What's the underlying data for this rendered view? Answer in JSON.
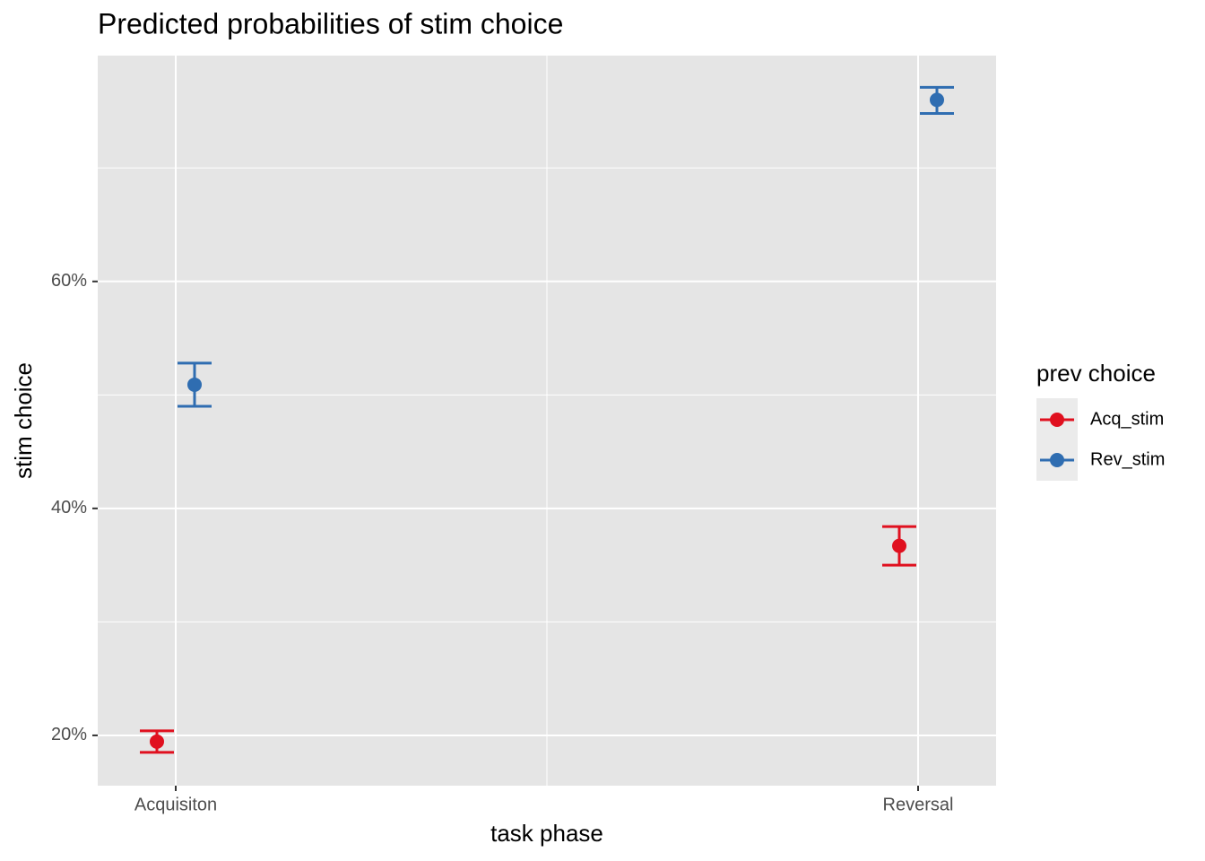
{
  "chart_data": {
    "type": "errorpoint",
    "title": "Predicted probabilities of stim choice",
    "x_label": "task phase",
    "y_label": "stim choice",
    "legend_title": "prev choice",
    "categories": [
      "Acquisiton",
      "Reversal"
    ],
    "series": [
      {
        "name": "Acq_stim",
        "color": "#e0101f",
        "values": [
          19.45,
          36.7
        ],
        "lower": [
          18.5,
          35.0
        ],
        "upper": [
          20.4,
          38.4
        ]
      },
      {
        "name": "Rev_stim",
        "color": "#2f6db1",
        "values": [
          50.9,
          76.0
        ],
        "lower": [
          49.0,
          74.8
        ],
        "upper": [
          52.8,
          77.1
        ]
      }
    ],
    "ylim": [
      15.57,
      79.9
    ],
    "yticks": [
      {
        "value": 20,
        "label": "20%"
      },
      {
        "value": 40,
        "label": "40%"
      },
      {
        "value": 60,
        "label": "60%"
      }
    ],
    "minor_yticks": [
      30,
      50,
      70
    ],
    "grid": true,
    "legend": "right"
  }
}
